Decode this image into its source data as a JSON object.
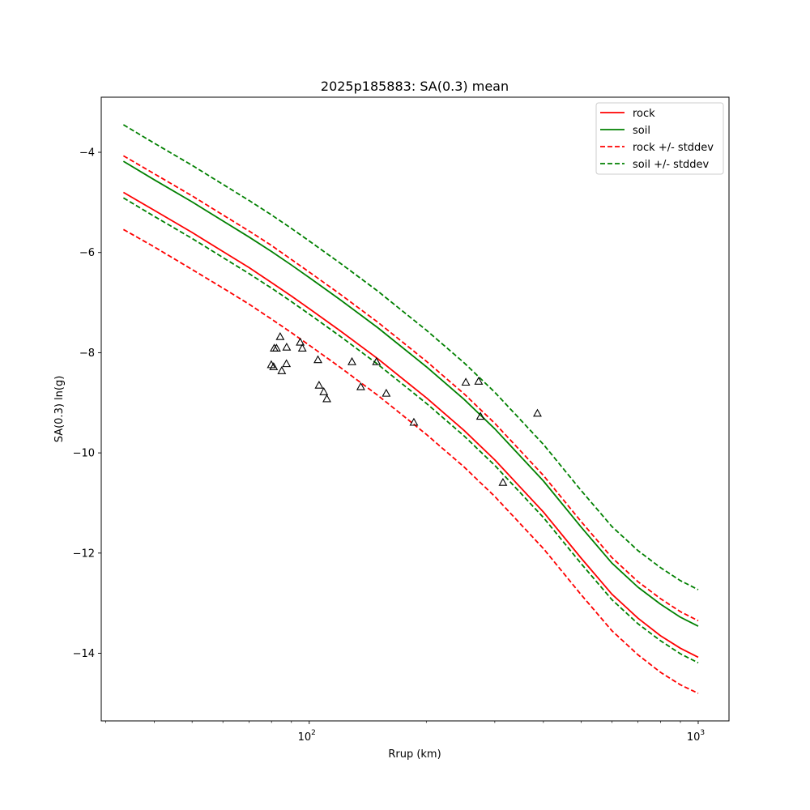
{
  "chart_data": {
    "type": "line",
    "title": "2025p185883: SA(0.3) mean",
    "xlabel": "Rrup (km)",
    "ylabel": "SA(0.3) ln(g)",
    "x_scale": "log",
    "xlim": [
      29.2,
      1200
    ],
    "ylim": [
      -15.35,
      -2.9
    ],
    "x_ticks": [
      {
        "value": 100,
        "base": "10",
        "exp": "2"
      },
      {
        "value": 1000,
        "base": "10",
        "exp": "3"
      }
    ],
    "y_ticks": [
      {
        "value": -4,
        "label": "−4"
      },
      {
        "value": -6,
        "label": "−6"
      },
      {
        "value": -8,
        "label": "−8"
      },
      {
        "value": -10,
        "label": "−10"
      },
      {
        "value": -12,
        "label": "−12"
      },
      {
        "value": -14,
        "label": "−14"
      }
    ],
    "grid": false,
    "legend_position": "top-right",
    "legend": [
      {
        "label": "rock",
        "color": "#ff0000",
        "dashed": false
      },
      {
        "label": "soil",
        "color": "#008000",
        "dashed": false
      },
      {
        "label": "rock +/- stddev",
        "color": "#ff0000",
        "dashed": true
      },
      {
        "label": "soil +/- stddev",
        "color": "#008000",
        "dashed": true
      }
    ],
    "x": [
      33.3,
      40,
      50,
      60,
      70,
      80,
      90,
      100,
      120,
      150,
      200,
      250,
      300,
      400,
      500,
      600,
      700,
      800,
      900,
      1000
    ],
    "series": [
      {
        "name": "rock",
        "color": "#ff0000",
        "dashed": false,
        "values": [
          -4.8,
          -5.16,
          -5.6,
          -5.98,
          -6.3,
          -6.6,
          -6.87,
          -7.12,
          -7.56,
          -8.12,
          -8.9,
          -9.55,
          -10.14,
          -11.18,
          -12.1,
          -12.82,
          -13.3,
          -13.65,
          -13.9,
          -14.08
        ]
      },
      {
        "name": "soil",
        "color": "#008000",
        "dashed": false,
        "values": [
          -4.18,
          -4.55,
          -4.99,
          -5.37,
          -5.69,
          -5.98,
          -6.25,
          -6.5,
          -6.94,
          -7.5,
          -8.28,
          -8.93,
          -9.52,
          -10.56,
          -11.48,
          -12.2,
          -12.68,
          -13.02,
          -13.28,
          -13.46
        ]
      },
      {
        "name": "rock +/- stddev",
        "color": "#ff0000",
        "dashed": true,
        "values": [
          -4.07,
          -4.43,
          -4.87,
          -5.25,
          -5.57,
          -5.86,
          -6.14,
          -6.39,
          -6.83,
          -7.39,
          -8.17,
          -8.82,
          -9.41,
          -10.45,
          -11.37,
          -12.09,
          -12.57,
          -12.91,
          -13.17,
          -13.35
        ]
      },
      {
        "name": "rock +/- stddev",
        "color": "#ff0000",
        "dashed": true,
        "values": [
          -5.54,
          -5.89,
          -6.34,
          -6.71,
          -7.03,
          -7.33,
          -7.6,
          -7.85,
          -8.29,
          -8.85,
          -9.63,
          -10.28,
          -10.87,
          -11.91,
          -12.83,
          -13.55,
          -14.03,
          -14.38,
          -14.63,
          -14.8
        ]
      },
      {
        "name": "soil +/- stddev",
        "color": "#008000",
        "dashed": true,
        "values": [
          -3.45,
          -3.82,
          -4.26,
          -4.64,
          -4.96,
          -5.25,
          -5.52,
          -5.77,
          -6.21,
          -6.77,
          -7.55,
          -8.2,
          -8.79,
          -9.83,
          -10.75,
          -11.47,
          -11.95,
          -12.29,
          -12.55,
          -12.73
        ]
      },
      {
        "name": "soil +/- stddev",
        "color": "#008000",
        "dashed": true,
        "values": [
          -4.91,
          -5.28,
          -5.72,
          -6.1,
          -6.42,
          -6.71,
          -6.98,
          -7.23,
          -7.67,
          -8.23,
          -9.01,
          -9.66,
          -10.25,
          -11.29,
          -12.21,
          -12.93,
          -13.41,
          -13.75,
          -14.01,
          -14.19
        ]
      }
    ],
    "observations": {
      "marker": "triangle",
      "points": [
        [
          79.9,
          -8.24
        ],
        [
          81.3,
          -7.91
        ],
        [
          81.0,
          -8.28
        ],
        [
          82.4,
          -7.91
        ],
        [
          84.2,
          -7.68
        ],
        [
          85.0,
          -8.36
        ],
        [
          87.5,
          -7.89
        ],
        [
          87.4,
          -8.22
        ],
        [
          94.8,
          -7.79
        ],
        [
          96.0,
          -7.91
        ],
        [
          105.3,
          -8.14
        ],
        [
          106.0,
          -8.65
        ],
        [
          109.0,
          -8.78
        ],
        [
          111.0,
          -8.92
        ],
        [
          128.8,
          -8.18
        ],
        [
          135.7,
          -8.68
        ],
        [
          148.9,
          -8.18
        ],
        [
          157.8,
          -8.81
        ],
        [
          185.8,
          -9.39
        ],
        [
          252.7,
          -8.59
        ],
        [
          272.6,
          -8.57
        ],
        [
          275.6,
          -9.27
        ],
        [
          314.8,
          -10.59
        ],
        [
          386.1,
          -9.21
        ]
      ]
    }
  }
}
